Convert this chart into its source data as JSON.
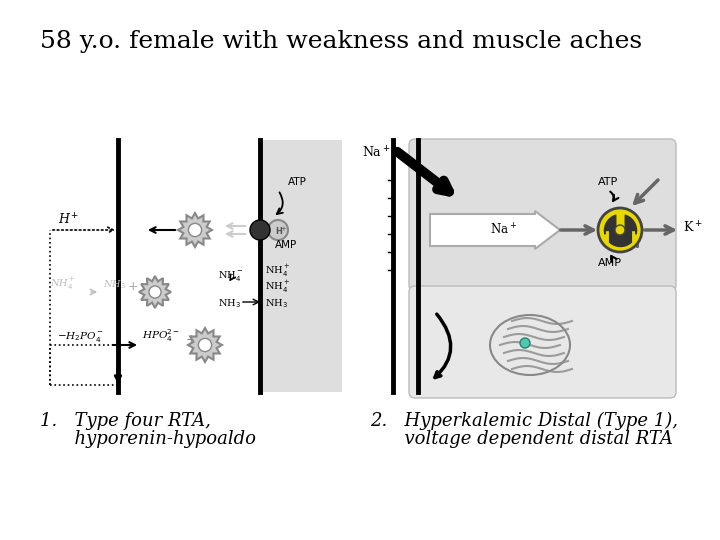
{
  "title": "58 y.o. female with weakness and muscle aches",
  "title_fontsize": 18,
  "caption1_line1": "1.   Type four RTA,",
  "caption1_line2": "      hyporenin-hypoaldo",
  "caption2_line1": "2.   Hyperkalemic Distal (Type 1),",
  "caption2_line2": "      voltage dependent distal RTA",
  "caption_fontsize": 13,
  "bg_color": "#ffffff",
  "text_color": "#000000",
  "diagram_bg": "#dedede",
  "gear_color": "#888888"
}
